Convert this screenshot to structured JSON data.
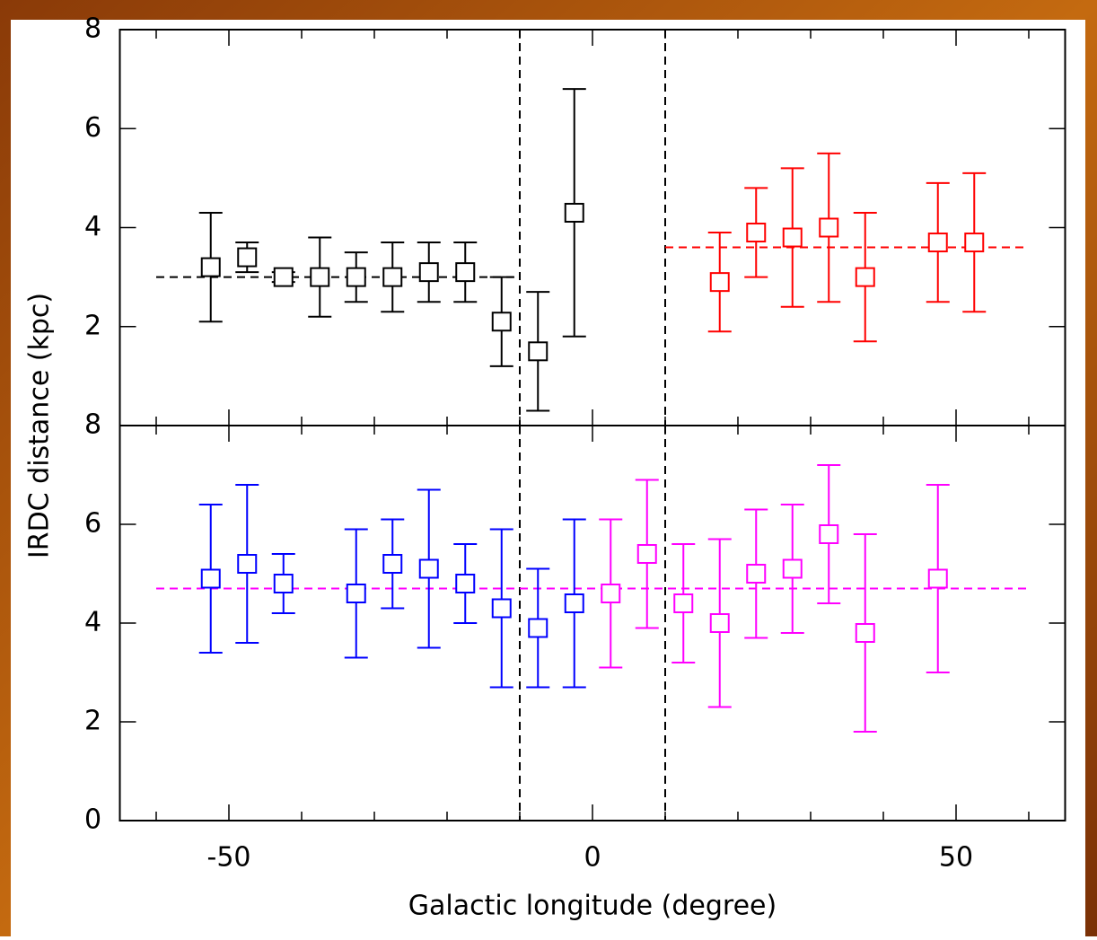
{
  "chart_data": [
    {
      "type": "errorbar",
      "ylabel": "IRDC distance (kpc)",
      "xlim": [
        -65,
        65
      ],
      "ylim": [
        0,
        8
      ],
      "yticks": [
        2,
        4,
        6,
        8
      ],
      "xticks": [
        -50,
        0,
        50
      ],
      "xminor": [
        -60,
        -40,
        -30,
        -20,
        -10,
        10,
        20,
        30,
        40,
        60
      ],
      "vlines": [
        -10,
        10
      ],
      "series": [
        {
          "color": "#000000",
          "x": [
            -52.5,
            -47.5,
            -42.5,
            -37.5,
            -32.5,
            -27.5,
            -22.5,
            -17.5,
            -12.5,
            -7.5,
            -2.5
          ],
          "values": [
            3.2,
            3.4,
            3.0,
            3.0,
            3.0,
            3.0,
            3.1,
            3.1,
            2.1,
            1.5,
            4.3
          ],
          "errors": [
            1.1,
            0.3,
            0.1,
            0.8,
            0.5,
            0.7,
            0.6,
            0.6,
            0.9,
            1.2,
            2.5
          ]
        },
        {
          "color": "#ff0000",
          "x": [
            17.5,
            22.5,
            27.5,
            32.5,
            37.5,
            47.5,
            52.5
          ],
          "values": [
            2.9,
            3.9,
            3.8,
            4.0,
            3.0,
            3.7,
            3.7
          ],
          "errors": [
            1.0,
            0.9,
            1.4,
            1.5,
            1.3,
            1.2,
            1.4
          ]
        }
      ],
      "hlines": [
        {
          "y": 3,
          "xrange": [
            -60,
            -10
          ],
          "color": "#000000"
        },
        {
          "y": 3.6,
          "xrange": [
            10,
            60
          ],
          "color": "#ff0000"
        }
      ]
    },
    {
      "type": "errorbar",
      "xlabel": "Galactic longitude (degree)",
      "xlim": [
        -65,
        65
      ],
      "ylim": [
        0,
        8
      ],
      "yticks": [
        0,
        2,
        4,
        6,
        8
      ],
      "xticks": [
        -50,
        0,
        50
      ],
      "xminor": [
        -60,
        -40,
        -30,
        -20,
        -10,
        10,
        20,
        30,
        40,
        60
      ],
      "vlines": [
        -10,
        10
      ],
      "series": [
        {
          "color": "#0000ff",
          "x": [
            -52.5,
            -47.5,
            -42.5,
            -32.5,
            -27.5,
            -22.5,
            -17.5,
            -12.5,
            -7.5,
            -2.5
          ],
          "values": [
            4.9,
            5.2,
            4.8,
            4.6,
            5.2,
            5.1,
            4.8,
            4.3,
            3.9,
            4.4
          ],
          "errors": [
            1.5,
            1.6,
            0.6,
            1.3,
            0.9,
            1.6,
            0.8,
            1.6,
            1.2,
            1.7
          ]
        },
        {
          "color": "#ff00ff",
          "x": [
            2.5,
            7.5,
            12.5,
            17.5,
            22.5,
            27.5,
            32.5,
            37.5,
            47.5
          ],
          "values": [
            4.6,
            5.4,
            4.4,
            4.0,
            5.0,
            5.1,
            5.8,
            3.8,
            4.9
          ],
          "errors": [
            1.5,
            1.5,
            1.2,
            1.7,
            1.3,
            1.3,
            1.4,
            2.0,
            1.9
          ]
        }
      ],
      "hlines": [
        {
          "y": 4.7,
          "xrange": [
            -60,
            60
          ],
          "color": "#ff00ff"
        }
      ]
    }
  ]
}
